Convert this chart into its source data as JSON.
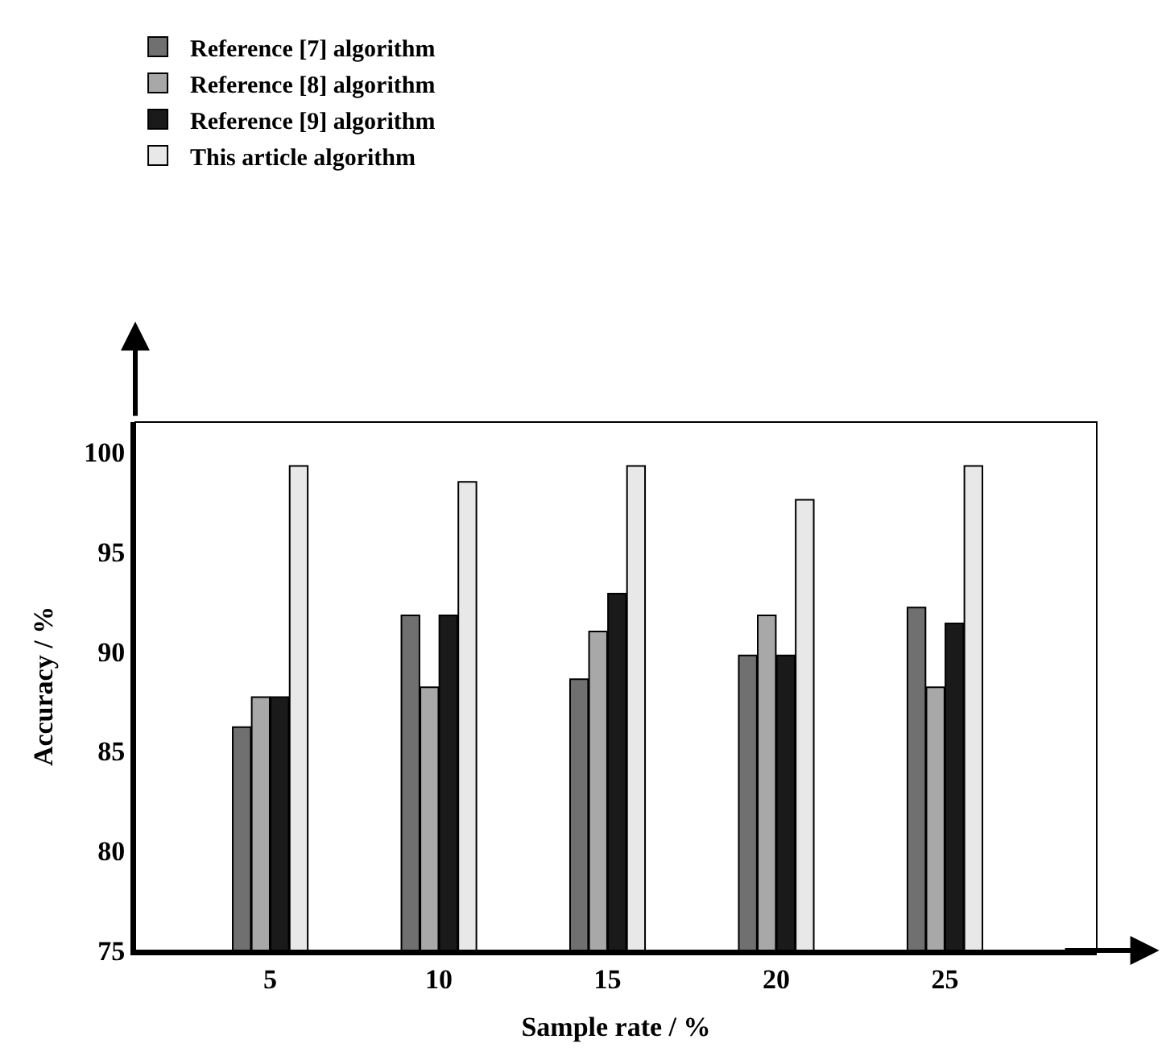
{
  "chart_data": {
    "type": "bar",
    "xlabel": "Sample rate / %",
    "ylabel": "Accuracy / %",
    "categories": [
      "5",
      "10",
      "15",
      "20",
      "25"
    ],
    "series": [
      {
        "name": "Reference [7] algorithm",
        "color": "#707070",
        "values": [
          86.2,
          91.8,
          88.6,
          89.8,
          92.2
        ]
      },
      {
        "name": "Reference [8] algorithm",
        "color": "#a8a8a8",
        "values": [
          87.7,
          88.2,
          91.0,
          91.8,
          88.2
        ]
      },
      {
        "name": "Reference [9] algorithm",
        "color": "#1a1a1a",
        "values": [
          87.7,
          91.8,
          92.9,
          89.8,
          91.4
        ]
      },
      {
        "name": "This article algorithm",
        "color": "#e8e8e8",
        "values": [
          99.3,
          98.5,
          99.3,
          97.6,
          99.3
        ]
      }
    ],
    "ylim": [
      75,
      101.5
    ],
    "yticks": [
      75,
      80,
      85,
      90,
      95,
      100
    ],
    "legend": "top left"
  }
}
